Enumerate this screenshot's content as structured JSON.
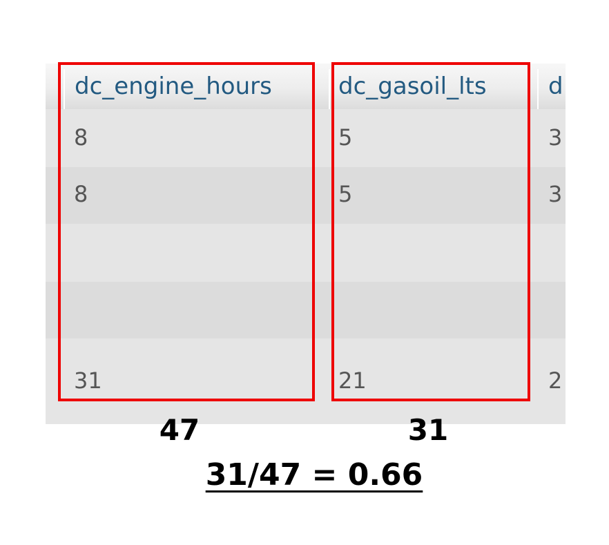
{
  "table": {
    "columns": [
      "dc_engine_hours",
      "dc_gasoil_lts",
      "d"
    ],
    "rows": [
      [
        "8",
        "5",
        "3"
      ],
      [
        "8",
        "5",
        "3"
      ],
      [
        "",
        "",
        ""
      ],
      [
        "",
        "",
        ""
      ],
      [
        "31",
        "21",
        "2"
      ]
    ]
  },
  "totals": {
    "engine_hours": "47",
    "gasoil_lts": "31"
  },
  "ratio": "31/47 = 0.66",
  "colors": {
    "highlight": "#ee0000",
    "header_text": "#235a81",
    "cell_text": "#555555"
  }
}
